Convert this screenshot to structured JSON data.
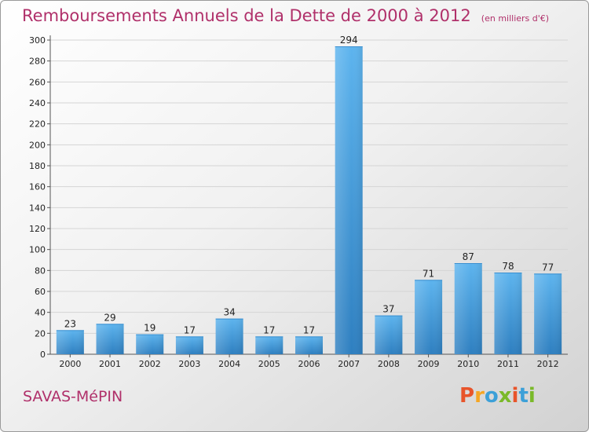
{
  "title": "Remboursements Annuels de la Dette de 2000 à 2012",
  "unit": "(en milliers d'€)",
  "commune": "SAVAS-MéPIN",
  "logo": {
    "letters": [
      {
        "ch": "P",
        "color": "#e8542a"
      },
      {
        "ch": "r",
        "color": "#f5a623"
      },
      {
        "ch": "o",
        "color": "#3ca0d8"
      },
      {
        "ch": "x",
        "color": "#7ab929"
      },
      {
        "ch": "i",
        "color": "#e8542a"
      },
      {
        "ch": "t",
        "color": "#3ca0d8"
      },
      {
        "ch": "i",
        "color": "#7ab929"
      }
    ]
  },
  "colors": {
    "bar_top": "#5db4ee",
    "bar_bottom": "#2e7fc0",
    "title": "#b0306a",
    "grid": "#d5d5d5"
  },
  "chart_data": {
    "type": "bar",
    "categories": [
      "2000",
      "2001",
      "2002",
      "2003",
      "2004",
      "2005",
      "2006",
      "2007",
      "2008",
      "2009",
      "2010",
      "2011",
      "2012"
    ],
    "values": [
      23,
      29,
      19,
      17,
      34,
      17,
      17,
      294,
      37,
      71,
      87,
      78,
      77
    ],
    "ylim": [
      0,
      300
    ],
    "yticks": [
      0,
      20,
      40,
      60,
      80,
      100,
      120,
      140,
      160,
      180,
      200,
      220,
      240,
      260,
      280,
      300
    ],
    "grid": true,
    "data_labels": true
  }
}
